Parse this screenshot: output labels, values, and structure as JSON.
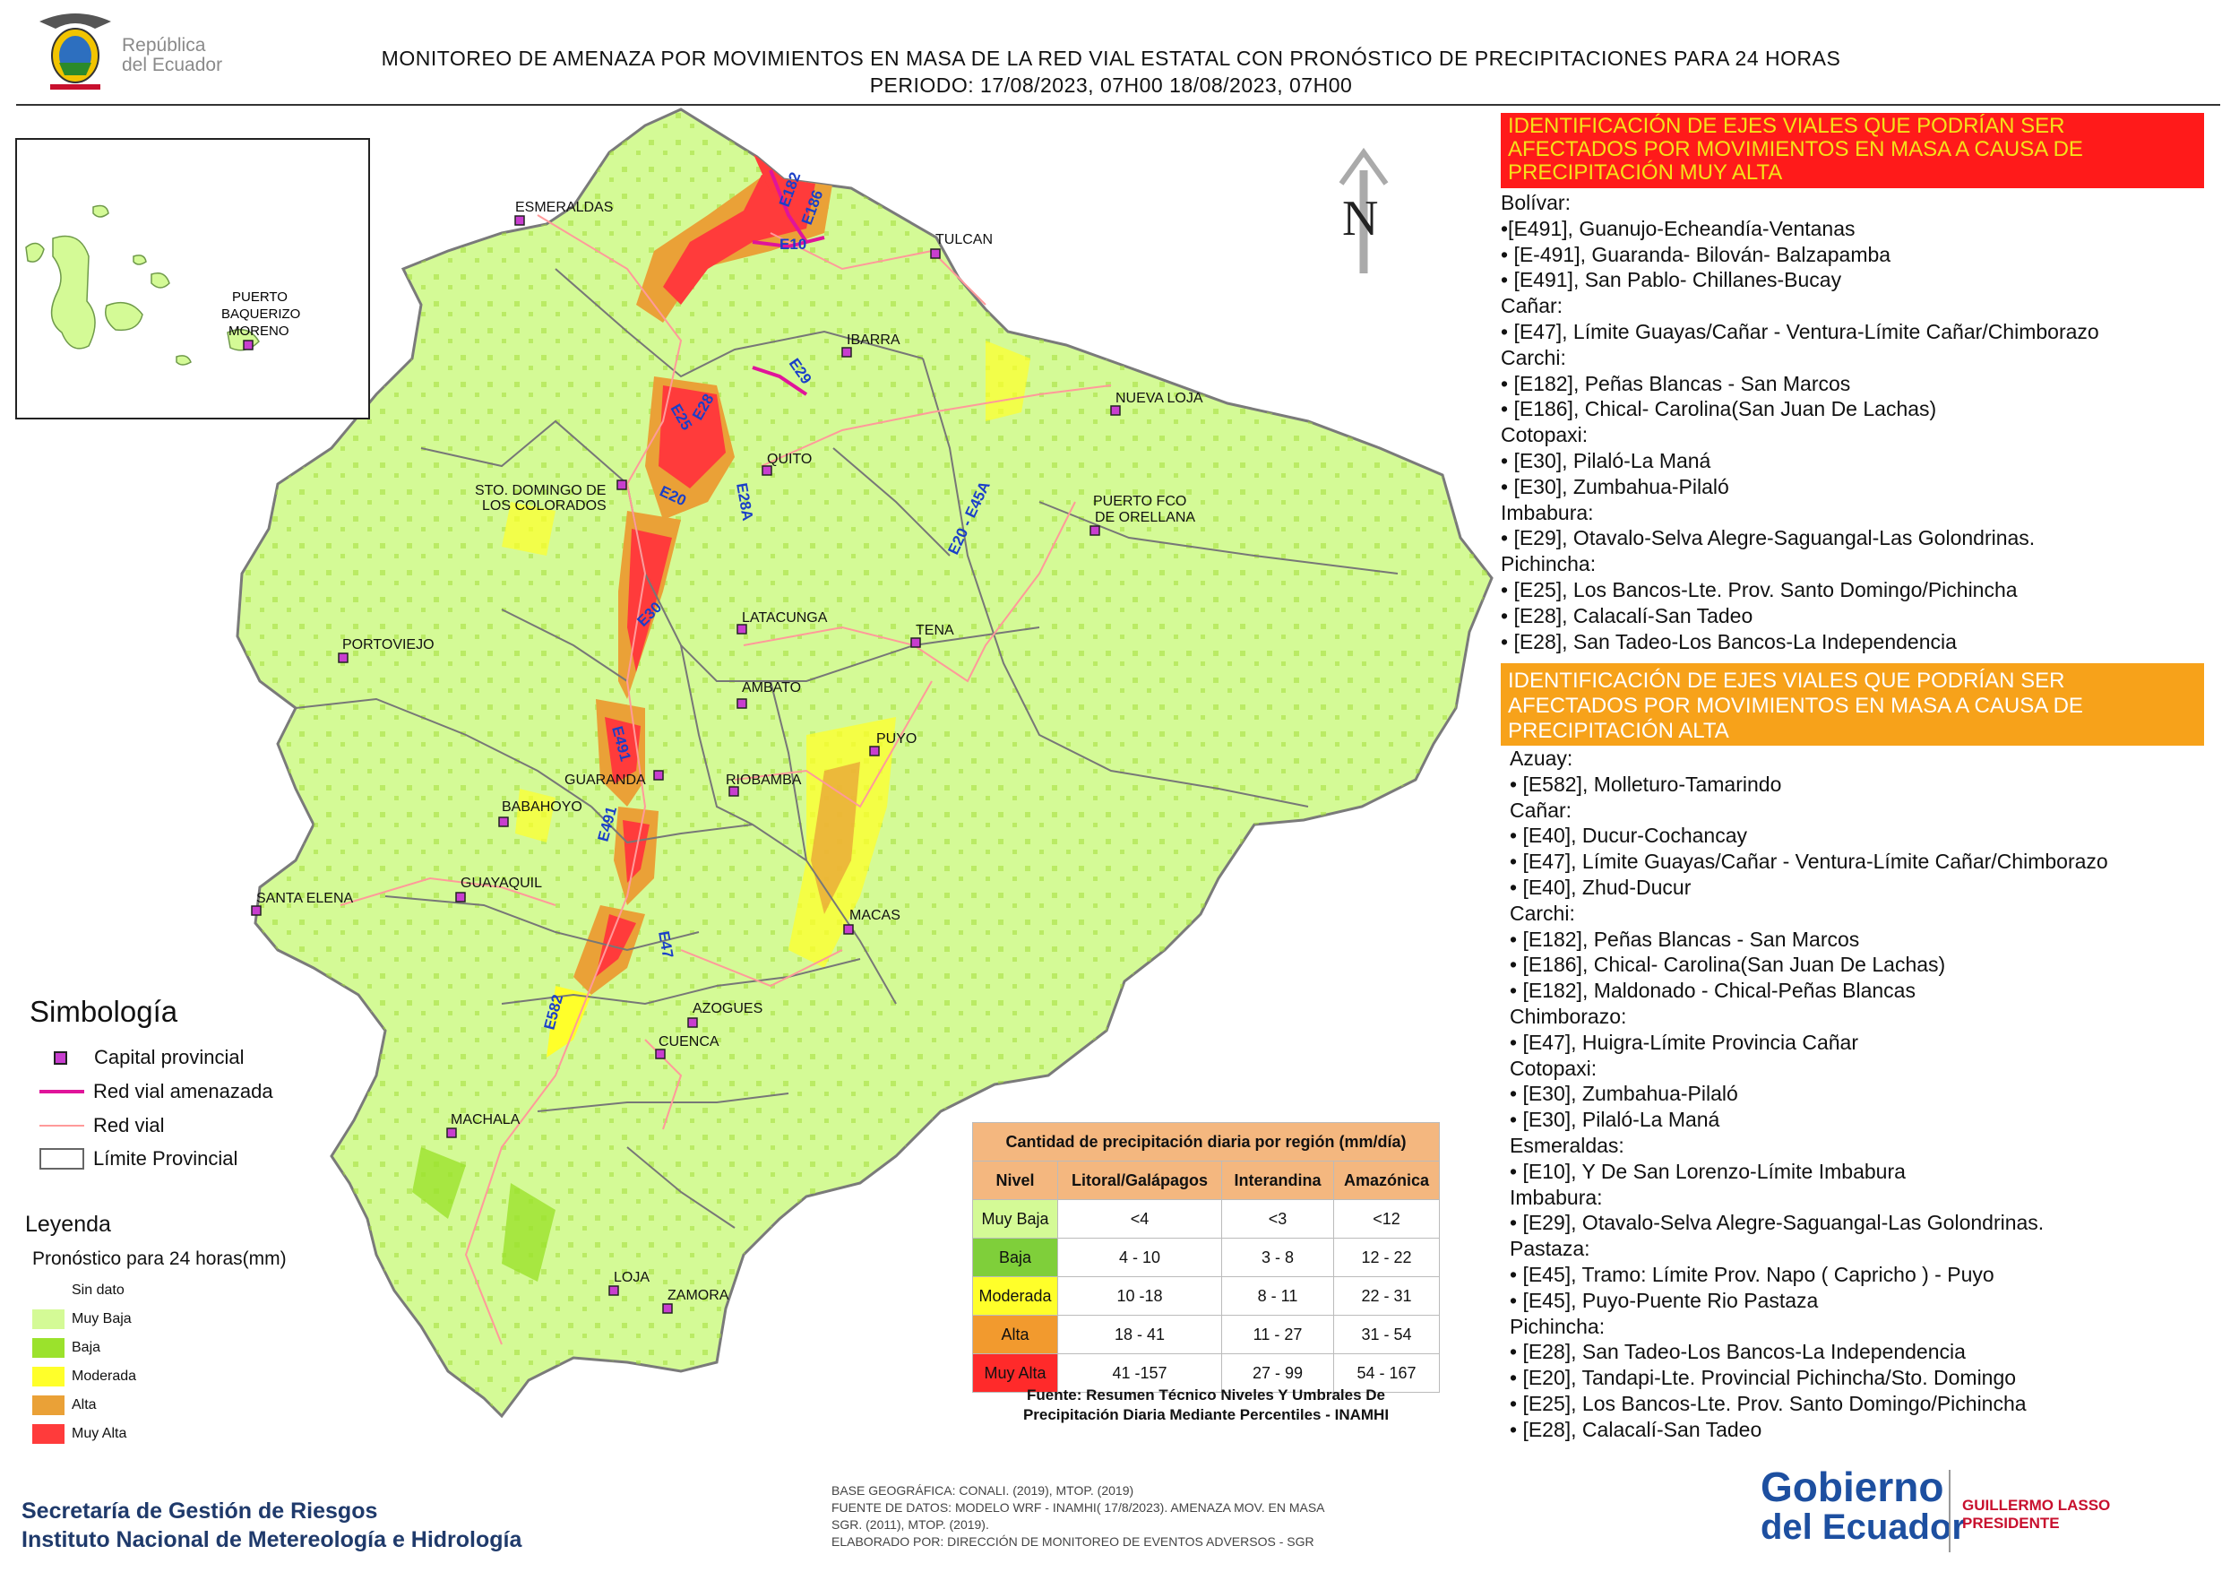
{
  "header": {
    "brand_line1": "República",
    "brand_line2": "del Ecuador",
    "title_line1": "MONITOREO DE AMENAZA POR MOVIMIENTOS EN MASA DE LA RED VIAL  ESTATAL  CON PRONÓSTICO  DE  PRECIPITACIONES PARA 24 HORAS",
    "title_line2": "PERIODO: 17/08/2023, 07H00 18/08/2023, 07H00"
  },
  "map": {
    "north_label": "N",
    "cities": [
      "ESMERALDAS",
      "TULCAN",
      "IBARRA",
      "NUEVA LOJA",
      "QUITO",
      "STO. DOMINGO DE",
      "LOS COLORADOS",
      "PUERTO FCO",
      "DE ORELLANA",
      "PORTOVIEJO",
      "LATACUNGA",
      "TENA",
      "AMBATO",
      "PUYO",
      "GUARANDA",
      "RIOBAMBA",
      "BABAHOYO",
      "GUAYAQUIL",
      "SANTA ELENA",
      "MACAS",
      "AZOGUES",
      "CUENCA",
      "MACHALA",
      "LOJA",
      "ZAMORA"
    ],
    "roads": [
      "E10",
      "E182",
      "E186",
      "E29",
      "E25",
      "E28",
      "E20",
      "E28A",
      "E20 - E45A",
      "E30",
      "E491",
      "E491",
      "E47",
      "E582"
    ],
    "inset_labels": [
      "PUERTO",
      "BAQUERIZO",
      "MORENO"
    ]
  },
  "legend": {
    "simbologia_title": "Simbología",
    "simbologia_items": [
      "Capital provincial",
      "Red vial amenazada",
      "Red vial",
      "Límite Provincial"
    ],
    "leyenda_title": "Leyenda",
    "leyenda_subtitle": "Pronóstico para 24 horas(mm)",
    "levels": [
      {
        "label": "Sin dato",
        "color": "#ffffff"
      },
      {
        "label": "Muy Baja",
        "color": "#d4fa96"
      },
      {
        "label": "Baja",
        "color": "#9be22c"
      },
      {
        "label": "Moderada",
        "color": "#ffff2a"
      },
      {
        "label": "Alta",
        "color": "#eaa137"
      },
      {
        "label": "Muy Alta",
        "color": "#ff3b3b"
      }
    ]
  },
  "precip_table": {
    "title": "Cantidad de precipitación diaria por región (mm/día)",
    "headers": [
      "Nivel",
      "Litoral/Galápagos",
      "Interandina",
      "Amazónica"
    ],
    "rows": [
      {
        "level": "Muy Baja",
        "color": "#d4fa96",
        "values": [
          "<4",
          "<3",
          "<12"
        ]
      },
      {
        "level": "Baja",
        "color": "#7fcf3a",
        "values": [
          "4 - 10",
          "3 - 8",
          "12 - 22"
        ]
      },
      {
        "level": "Moderada",
        "color": "#ffff2a",
        "values": [
          "10 -18",
          "8 - 11",
          "22 - 31"
        ]
      },
      {
        "level": "Alta",
        "color": "#f29a2e",
        "values": [
          "18 - 41",
          "11 - 27",
          "31 - 54"
        ]
      },
      {
        "level": "Muy Alta",
        "color": "#ff2a2a",
        "values": [
          "41 -157",
          "27 - 99",
          "54 - 167"
        ]
      }
    ],
    "source_line1": "Fuente: Resumen Técnico Niveles Y Umbrales De",
    "source_line2": "Precipitación Diaria Mediante Percentiles - INAMHI"
  },
  "panel_muy_alta": {
    "header": [
      "IDENTIFICACIÓN DE EJES VIALES QUE PODRÍAN SER",
      "AFECTADOS POR MOVIMIENTOS EN MASA A CAUSA DE",
      "PRECIPITACIÓN MUY ALTA"
    ],
    "lines": [
      "Bolívar:",
      "•[E491], Guanujo-Echeandía-Ventanas",
      "• [E-491], Guaranda- Bilován- Balzapamba",
      "• [E491], San Pablo- Chillanes-Bucay",
      "Cañar:",
      "• [E47], Límite Guayas/Cañar - Ventura-Límite Cañar/Chimborazo",
      "Carchi:",
      "• [E182], Peñas Blancas - San Marcos",
      "• [E186], Chical- Carolina(San Juan De Lachas)",
      "Cotopaxi:",
      "• [E30], Pilaló-La Maná",
      "• [E30], Zumbahua-Pilaló",
      "Imbabura:",
      "• [E29], Otavalo-Selva Alegre-Saguangal-Las Golondrinas.",
      "Pichincha:",
      "• [E25], Los Bancos-Lte. Prov. Santo Domingo/Pichincha",
      "• [E28], Calacalí-San Tadeo",
      "• [E28], San Tadeo-Los Bancos-La Independencia"
    ]
  },
  "panel_alta": {
    "header": [
      "IDENTIFICACIÓN DE EJES VIALES QUE PODRÍAN SER",
      "AFECTADOS POR MOVIMIENTOS EN MASA A CAUSA DE",
      "PRECIPITACIÓN  ALTA"
    ],
    "lines": [
      "Azuay:",
      "• [E582], Molleturo-Tamarindo",
      "Cañar:",
      "• [E40], Ducur-Cochancay",
      "• [E47], Límite Guayas/Cañar - Ventura-Límite Cañar/Chimborazo",
      "• [E40], Zhud-Ducur",
      "Carchi:",
      "• [E182], Peñas Blancas - San Marcos",
      "• [E186], Chical- Carolina(San Juan De Lachas)",
      "• [E182], Maldonado - Chical-Peñas Blancas",
      "Chimborazo:",
      "• [E47], Huigra-Límite Provincia Cañar",
      "Cotopaxi:",
      "• [E30], Zumbahua-Pilaló",
      "• [E30], Pilaló-La Maná",
      "Esmeraldas:",
      "• [E10], Y De San Lorenzo-Límite Imbabura",
      "Imbabura:",
      "• [E29], Otavalo-Selva Alegre-Saguangal-Las Golondrinas.",
      "Pastaza:",
      "• [E45], Tramo: Límite Prov. Napo ( Capricho ) - Puyo",
      "• [E45], Puyo-Puente Rio Pastaza",
      "Pichincha:",
      "• [E28], San Tadeo-Los Bancos-La Independencia",
      "• [E20], Tandapi-Lte. Provincial Pichincha/Sto. Domingo",
      "• [E25], Los Bancos-Lte. Prov. Santo Domingo/Pichincha",
      "• [E28], Calacalí-San Tadeo"
    ]
  },
  "footer": {
    "org_line1": "Secretaría de Gestión de Riesgos",
    "org_line2": "Instituto Nacional de Metereología e Hidrología",
    "meta_lines": [
      "BASE GEOGRÁFICA: CONALI. (2019), MTOP. (2019)",
      "FUENTE DE DATOS: MODELO WRF - INAMHI( 17/8/2023).  AMENAZA MOV. EN MASA",
      "SGR. (2011), MTOP. (2019).",
      "ELABORADO POR: DIRECCIÓN DE MONITOREO DE EVENTOS ADVERSOS - SGR"
    ],
    "gob_line1": "Gobierno",
    "gob_line2": "del Ecuador",
    "president_line1": "GUILLERMO LASSO",
    "president_line2": "PRESIDENTE"
  }
}
